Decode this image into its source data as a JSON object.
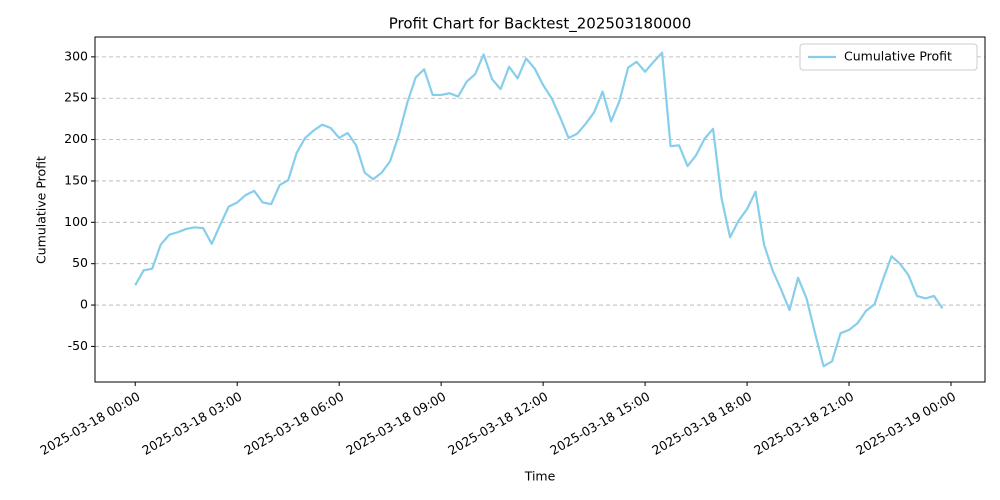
{
  "chart_data": {
    "type": "line",
    "title": "Profit Chart for Backtest_202503180000",
    "x_label": "Time",
    "y_label": "Cumulative Profit",
    "x": [
      "2025-03-18 00:00",
      "2025-03-18 00:15",
      "2025-03-18 00:30",
      "2025-03-18 00:45",
      "2025-03-18 01:00",
      "2025-03-18 01:15",
      "2025-03-18 01:30",
      "2025-03-18 01:45",
      "2025-03-18 02:00",
      "2025-03-18 02:15",
      "2025-03-18 02:30",
      "2025-03-18 02:45",
      "2025-03-18 03:00",
      "2025-03-18 03:15",
      "2025-03-18 03:30",
      "2025-03-18 03:45",
      "2025-03-18 04:00",
      "2025-03-18 04:15",
      "2025-03-18 04:30",
      "2025-03-18 04:45",
      "2025-03-18 05:00",
      "2025-03-18 05:15",
      "2025-03-18 05:30",
      "2025-03-18 05:45",
      "2025-03-18 06:00",
      "2025-03-18 06:15",
      "2025-03-18 06:30",
      "2025-03-18 06:45",
      "2025-03-18 07:00",
      "2025-03-18 07:15",
      "2025-03-18 07:30",
      "2025-03-18 07:45",
      "2025-03-18 08:00",
      "2025-03-18 08:15",
      "2025-03-18 08:30",
      "2025-03-18 08:45",
      "2025-03-18 09:00",
      "2025-03-18 09:15",
      "2025-03-18 09:30",
      "2025-03-18 09:45",
      "2025-03-18 10:00",
      "2025-03-18 10:15",
      "2025-03-18 10:30",
      "2025-03-18 10:45",
      "2025-03-18 11:00",
      "2025-03-18 11:15",
      "2025-03-18 11:30",
      "2025-03-18 11:45",
      "2025-03-18 12:00",
      "2025-03-18 12:15",
      "2025-03-18 12:30",
      "2025-03-18 12:45",
      "2025-03-18 13:00",
      "2025-03-18 13:15",
      "2025-03-18 13:30",
      "2025-03-18 13:45",
      "2025-03-18 14:00",
      "2025-03-18 14:15",
      "2025-03-18 14:30",
      "2025-03-18 14:45",
      "2025-03-18 15:00",
      "2025-03-18 15:15",
      "2025-03-18 15:30",
      "2025-03-18 15:45",
      "2025-03-18 16:00",
      "2025-03-18 16:15",
      "2025-03-18 16:30",
      "2025-03-18 16:45",
      "2025-03-18 17:00",
      "2025-03-18 17:15",
      "2025-03-18 17:30",
      "2025-03-18 17:45",
      "2025-03-18 18:00",
      "2025-03-18 18:15",
      "2025-03-18 18:30",
      "2025-03-18 18:45",
      "2025-03-18 19:00",
      "2025-03-18 19:15",
      "2025-03-18 19:30",
      "2025-03-18 19:45",
      "2025-03-18 20:00",
      "2025-03-18 20:15",
      "2025-03-18 20:30",
      "2025-03-18 20:45",
      "2025-03-18 21:00",
      "2025-03-18 21:15",
      "2025-03-18 21:30",
      "2025-03-18 21:45",
      "2025-03-18 22:00",
      "2025-03-18 22:15",
      "2025-03-18 22:30",
      "2025-03-18 22:45",
      "2025-03-18 23:00",
      "2025-03-18 23:15",
      "2025-03-18 23:30",
      "2025-03-18 23:45"
    ],
    "series": [
      {
        "name": "Cumulative Profit",
        "color": "#87ceeb",
        "values": [
          24,
          42,
          44,
          73,
          85,
          88,
          92,
          94,
          93,
          74,
          97,
          119,
          124,
          133,
          138,
          124,
          122,
          145,
          151,
          184,
          202,
          211,
          218,
          214,
          202,
          208,
          193,
          160,
          152,
          160,
          174,
          205,
          244,
          275,
          285,
          254,
          254,
          256,
          252,
          270,
          279,
          303,
          273,
          261,
          288,
          274,
          298,
          286,
          266,
          250,
          227,
          202,
          207,
          219,
          233,
          258,
          222,
          247,
          287,
          294,
          282,
          294,
          305,
          192,
          193,
          168,
          181,
          201,
          213,
          129,
          82,
          102,
          116,
          137,
          73,
          42,
          19,
          -6,
          33,
          8,
          -34,
          -74,
          -68,
          -34,
          -30,
          -22,
          -7,
          1,
          31,
          59,
          50,
          36,
          11,
          8,
          11,
          -4
        ]
      }
    ],
    "xlim": [
      "2025-03-17 22:49",
      "2025-03-19 01:00"
    ],
    "xticks": [
      "2025-03-18 00:00",
      "2025-03-18 03:00",
      "2025-03-18 06:00",
      "2025-03-18 09:00",
      "2025-03-18 12:00",
      "2025-03-18 15:00",
      "2025-03-18 18:00",
      "2025-03-18 21:00",
      "2025-03-19 00:00"
    ],
    "ylim": [
      -93,
      324
    ],
    "yticks": [
      -50,
      0,
      50,
      100,
      150,
      200,
      250,
      300
    ],
    "grid": "y",
    "legend": "upper right"
  }
}
